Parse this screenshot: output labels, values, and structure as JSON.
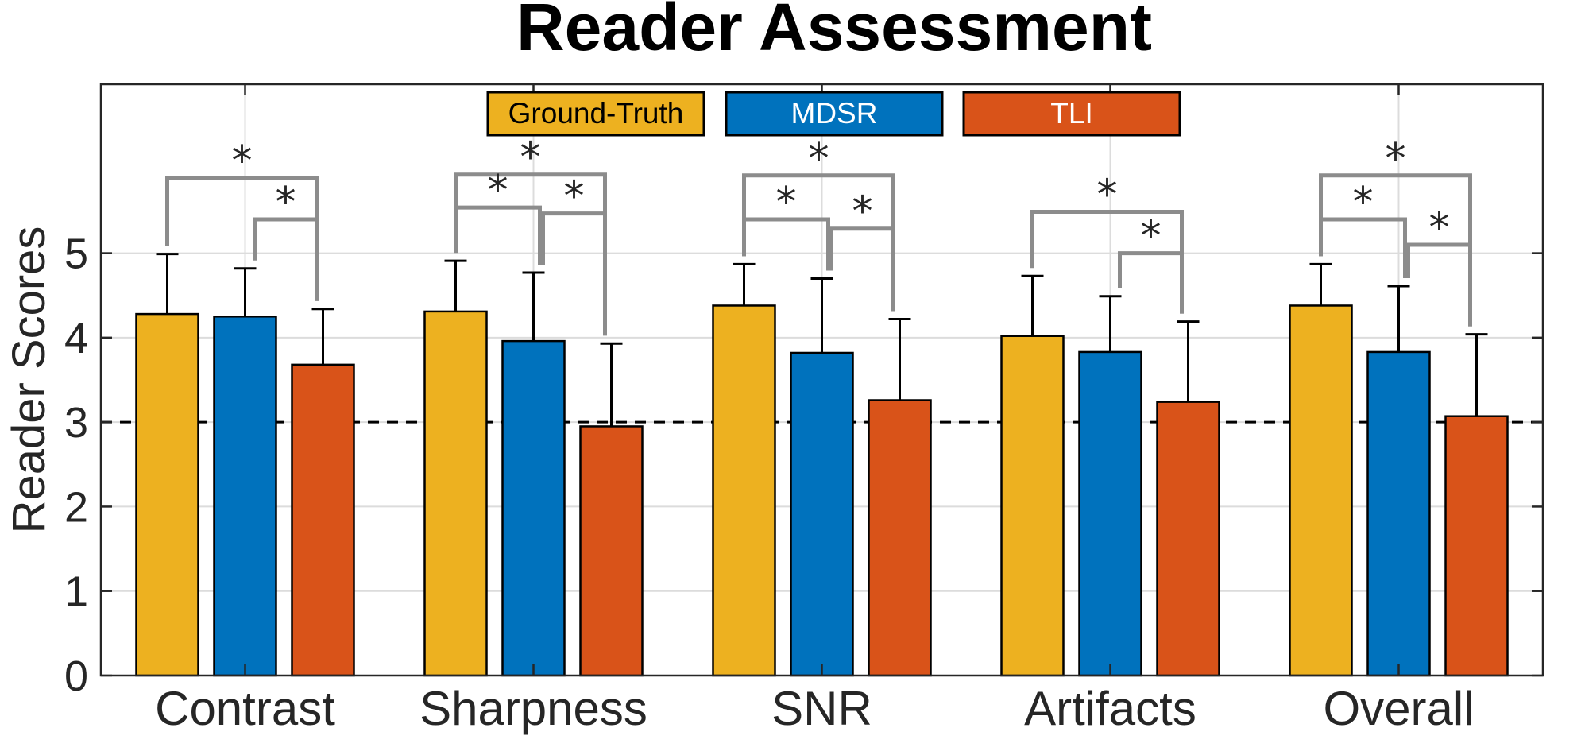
{
  "chart_data": {
    "type": "bar",
    "title": "Reader Assessment",
    "xlabel": "",
    "ylabel": "Reader Scores",
    "ylim": [
      0,
      7
    ],
    "yticks": [
      0,
      1,
      2,
      3,
      4,
      5
    ],
    "grid": true,
    "reference_line": 3,
    "legend_position": "top-center",
    "categories": [
      "Contrast",
      "Sharpness",
      "SNR",
      "Artifacts",
      "Overall"
    ],
    "series": [
      {
        "name": "Ground-Truth",
        "color": "#EDB120",
        "text_color": "#000000",
        "values": [
          4.28,
          4.31,
          4.38,
          4.02,
          4.38
        ],
        "errors": [
          0.71,
          0.6,
          0.49,
          0.71,
          0.49
        ]
      },
      {
        "name": "MDSR",
        "color": "#0072BD",
        "text_color": "#ffffff",
        "values": [
          4.25,
          3.96,
          3.82,
          3.83,
          3.83
        ],
        "errors": [
          0.57,
          0.81,
          0.88,
          0.66,
          0.78
        ]
      },
      {
        "name": "TLI",
        "color": "#D95319",
        "text_color": "#ffffff",
        "values": [
          3.68,
          2.95,
          3.26,
          3.24,
          3.07
        ],
        "errors": [
          0.66,
          0.98,
          0.96,
          0.95,
          0.97
        ]
      }
    ],
    "significance": [
      {
        "category": 0,
        "pairs": [
          [
            0,
            2,
            5.89
          ],
          [
            1,
            2,
            5.4
          ]
        ]
      },
      {
        "category": 1,
        "pairs": [
          [
            0,
            2,
            5.93
          ],
          [
            0,
            1,
            5.54
          ],
          [
            1,
            2,
            5.47
          ]
        ]
      },
      {
        "category": 2,
        "pairs": [
          [
            0,
            2,
            5.92
          ],
          [
            0,
            1,
            5.4
          ],
          [
            1,
            2,
            5.29
          ]
        ]
      },
      {
        "category": 3,
        "pairs": [
          [
            0,
            2,
            5.49
          ],
          [
            1,
            2,
            5.0
          ]
        ]
      },
      {
        "category": 4,
        "pairs": [
          [
            0,
            2,
            5.92
          ],
          [
            0,
            1,
            5.4
          ],
          [
            1,
            2,
            5.1
          ]
        ]
      }
    ],
    "significance_mark": "*"
  }
}
